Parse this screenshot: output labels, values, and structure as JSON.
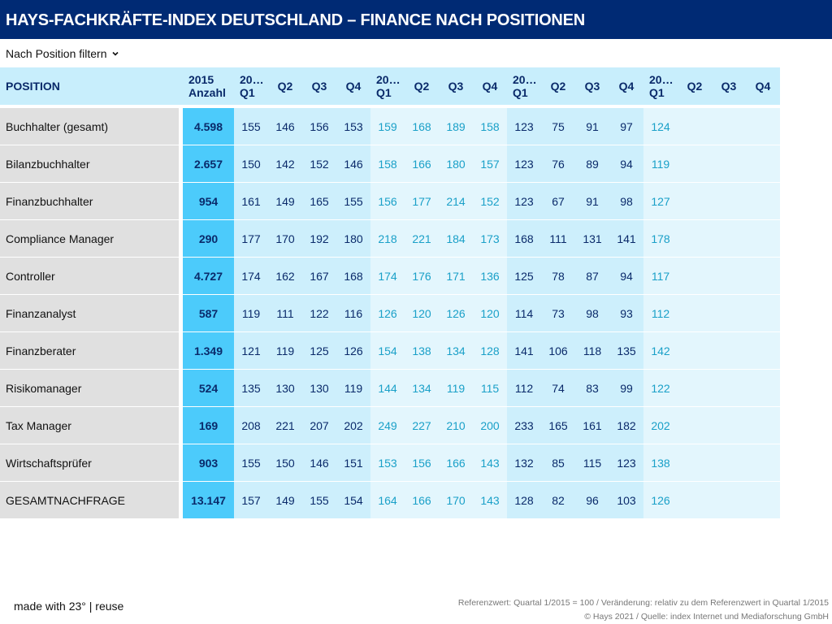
{
  "title": "HAYS-FACHKRÄFTE-INDEX DEUTSCHLAND – FINANCE NACH POSITIONEN",
  "filter_label": "Nach Position filtern",
  "chart_data": {
    "type": "table",
    "headers": {
      "position": "POSITION",
      "reference": [
        "2015",
        "Anzahl"
      ],
      "quarters": [
        [
          "20…",
          "Q1"
        ],
        [
          "Q2"
        ],
        [
          "Q3"
        ],
        [
          "Q4"
        ],
        [
          "20…",
          "Q1"
        ],
        [
          "Q2"
        ],
        [
          "Q3"
        ],
        [
          "Q4"
        ],
        [
          "20…",
          "Q1"
        ],
        [
          "Q2"
        ],
        [
          "Q3"
        ],
        [
          "Q4"
        ],
        [
          "20…",
          "Q1"
        ],
        [
          "Q2"
        ],
        [
          "Q3"
        ],
        [
          "Q4"
        ]
      ]
    },
    "rows": [
      {
        "name": "Buchhalter (gesamt)",
        "ref": "4.598",
        "values": [
          "155",
          "146",
          "156",
          "153",
          "159",
          "168",
          "189",
          "158",
          "123",
          "75",
          "91",
          "97",
          "124",
          "",
          "",
          ""
        ]
      },
      {
        "name": "Bilanzbuchhalter",
        "ref": "2.657",
        "values": [
          "150",
          "142",
          "152",
          "146",
          "158",
          "166",
          "180",
          "157",
          "123",
          "76",
          "89",
          "94",
          "119",
          "",
          "",
          ""
        ]
      },
      {
        "name": "Finanzbuchhalter",
        "ref": "954",
        "values": [
          "161",
          "149",
          "165",
          "155",
          "156",
          "177",
          "214",
          "152",
          "123",
          "67",
          "91",
          "98",
          "127",
          "",
          "",
          ""
        ]
      },
      {
        "name": "Compliance Manager",
        "ref": "290",
        "values": [
          "177",
          "170",
          "192",
          "180",
          "218",
          "221",
          "184",
          "173",
          "168",
          "111",
          "131",
          "141",
          "178",
          "",
          "",
          ""
        ]
      },
      {
        "name": "Controller",
        "ref": "4.727",
        "values": [
          "174",
          "162",
          "167",
          "168",
          "174",
          "176",
          "171",
          "136",
          "125",
          "78",
          "87",
          "94",
          "117",
          "",
          "",
          ""
        ]
      },
      {
        "name": "Finanzanalyst",
        "ref": "587",
        "values": [
          "119",
          "111",
          "122",
          "116",
          "126",
          "120",
          "126",
          "120",
          "114",
          "73",
          "98",
          "93",
          "112",
          "",
          "",
          ""
        ]
      },
      {
        "name": "Finanzberater",
        "ref": "1.349",
        "values": [
          "121",
          "119",
          "125",
          "126",
          "154",
          "138",
          "134",
          "128",
          "141",
          "106",
          "118",
          "135",
          "142",
          "",
          "",
          ""
        ]
      },
      {
        "name": "Risikomanager",
        "ref": "524",
        "values": [
          "135",
          "130",
          "130",
          "119",
          "144",
          "134",
          "119",
          "115",
          "112",
          "74",
          "83",
          "99",
          "122",
          "",
          "",
          ""
        ]
      },
      {
        "name": "Tax Manager",
        "ref": "169",
        "values": [
          "208",
          "221",
          "207",
          "202",
          "249",
          "227",
          "210",
          "200",
          "233",
          "165",
          "161",
          "182",
          "202",
          "",
          "",
          ""
        ]
      },
      {
        "name": "Wirtschaftsprüfer",
        "ref": "903",
        "values": [
          "155",
          "150",
          "146",
          "151",
          "153",
          "156",
          "166",
          "143",
          "132",
          "85",
          "115",
          "123",
          "138",
          "",
          "",
          ""
        ]
      },
      {
        "name": "GESAMTNACHFRAGE",
        "ref": "13.147",
        "values": [
          "157",
          "149",
          "155",
          "154",
          "164",
          "166",
          "170",
          "143",
          "128",
          "82",
          "96",
          "103",
          "126",
          "",
          "",
          ""
        ]
      }
    ]
  },
  "footer": {
    "made_with": "made with 23° | reuse",
    "note": "Referenzwert: Quartal 1/2015 = 100 / Veränderung: relativ zu dem Referenzwert in Quartal 1/2015",
    "source": "© Hays 2021 / Quelle: index Internet und Mediaforschung GmbH"
  }
}
